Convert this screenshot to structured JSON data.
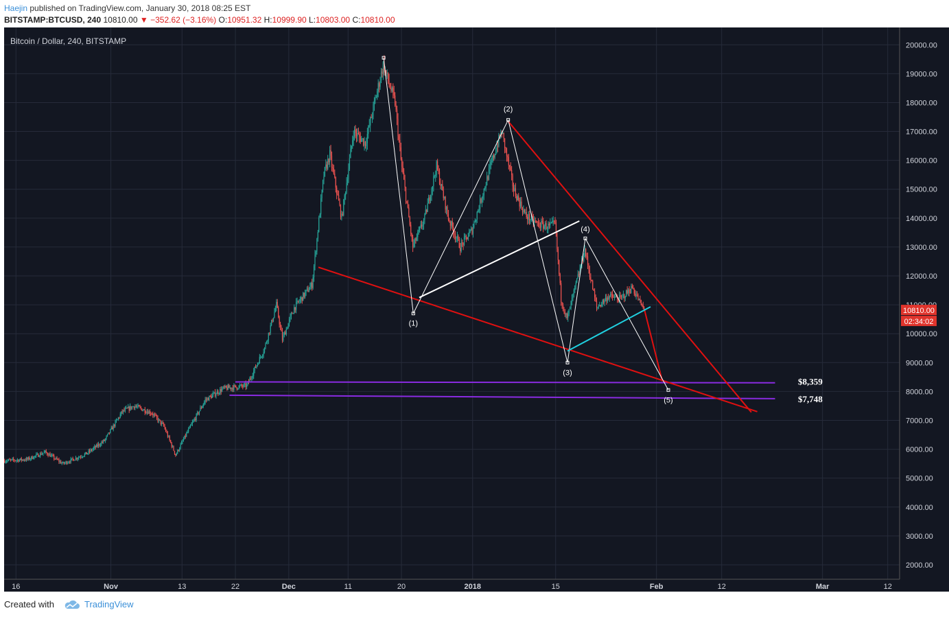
{
  "header": {
    "author": "Haejin",
    "published_text": "published on TradingView.com, January 30, 2018 08:25 EST",
    "symbol": "BITSTAMP:BTCUSD, 240",
    "last": "10810.00",
    "change": "−352.62 (−3.16%)",
    "o_label": "O:",
    "o_value": "10951.32",
    "h_label": "H:",
    "h_value": "10999.90",
    "l_label": "L:",
    "l_value": "10803.00",
    "c_label": "C:",
    "c_value": "10810.00"
  },
  "footer": {
    "created_with": "Created with",
    "brand": "TradingView"
  },
  "colors": {
    "background": "#131722",
    "grid": "#262b3a",
    "up": "#26a69a",
    "down": "#ef5350",
    "trend_red": "#e01010",
    "wave_white": "#ffffff",
    "support_purple": "#8a2be2",
    "cyan": "#20d0e0",
    "price_tag": "#e0342c"
  },
  "chart_data": {
    "type": "candlestick",
    "title": "Bitcoin / Dollar, 240, BITSTAMP",
    "ylim": [
      1500,
      20600
    ],
    "y_ticks": [
      20000,
      19000,
      18000,
      17000,
      16000,
      15000,
      14000,
      13000,
      12000,
      11000,
      10000,
      9000,
      8000,
      7000,
      6000,
      5000,
      4000,
      3000,
      2000
    ],
    "y_tick_labels": [
      "20000.00",
      "19000.00",
      "18000.00",
      "17000.00",
      "16000.00",
      "15000.00",
      "14000.00",
      "13000.00",
      "12000.00",
      "11000.00",
      "10000.00",
      "9000.00",
      "8000.00",
      "7000.00",
      "6000.00",
      "5000.00",
      "4000.00",
      "3000.00",
      "2000.00"
    ],
    "x_start": "2017-10-14",
    "x_end": "2018-03-14",
    "x_ticks": [
      {
        "date": "2017-10-16",
        "label": "16"
      },
      {
        "date": "2017-11-01",
        "label": "Nov"
      },
      {
        "date": "2017-11-13",
        "label": "13"
      },
      {
        "date": "2017-11-22",
        "label": "22"
      },
      {
        "date": "2017-12-01",
        "label": "Dec"
      },
      {
        "date": "2017-12-11",
        "label": "11"
      },
      {
        "date": "2017-12-20",
        "label": "20"
      },
      {
        "date": "2018-01-01",
        "label": "2018"
      },
      {
        "date": "2018-01-15",
        "label": "15"
      },
      {
        "date": "2018-02-01",
        "label": "Feb"
      },
      {
        "date": "2018-02-12",
        "label": "12"
      },
      {
        "date": "2018-03-01",
        "label": "Mar"
      },
      {
        "date": "2018-03-12",
        "label": "12"
      }
    ],
    "price_path": [
      {
        "date": "2017-10-14",
        "price": 5600
      },
      {
        "date": "2017-10-18",
        "price": 5650
      },
      {
        "date": "2017-10-21",
        "price": 5900
      },
      {
        "date": "2017-10-24",
        "price": 5500
      },
      {
        "date": "2017-10-28",
        "price": 5850
      },
      {
        "date": "2017-10-31",
        "price": 6300
      },
      {
        "date": "2017-11-03",
        "price": 7300
      },
      {
        "date": "2017-11-05",
        "price": 7500
      },
      {
        "date": "2017-11-08",
        "price": 7250
      },
      {
        "date": "2017-11-10",
        "price": 6800
      },
      {
        "date": "2017-11-12",
        "price": 5800
      },
      {
        "date": "2017-11-14",
        "price": 6600
      },
      {
        "date": "2017-11-17",
        "price": 7700
      },
      {
        "date": "2017-11-20",
        "price": 8100
      },
      {
        "date": "2017-11-24",
        "price": 8200
      },
      {
        "date": "2017-11-27",
        "price": 9500
      },
      {
        "date": "2017-11-29",
        "price": 11000
      },
      {
        "date": "2017-11-30",
        "price": 9800
      },
      {
        "date": "2017-12-02",
        "price": 10900
      },
      {
        "date": "2017-12-05",
        "price": 11700
      },
      {
        "date": "2017-12-07",
        "price": 15500
      },
      {
        "date": "2017-12-08",
        "price": 16200
      },
      {
        "date": "2017-12-10",
        "price": 14000
      },
      {
        "date": "2017-12-12",
        "price": 17000
      },
      {
        "date": "2017-12-14",
        "price": 16600
      },
      {
        "date": "2017-12-17",
        "price": 19300
      },
      {
        "date": "2017-12-19",
        "price": 18000
      },
      {
        "date": "2017-12-20",
        "price": 16000
      },
      {
        "date": "2017-12-22",
        "price": 13000
      },
      {
        "date": "2017-12-24",
        "price": 14000
      },
      {
        "date": "2017-12-26",
        "price": 15800
      },
      {
        "date": "2017-12-28",
        "price": 14000
      },
      {
        "date": "2017-12-30",
        "price": 13000
      },
      {
        "date": "2018-01-01",
        "price": 13600
      },
      {
        "date": "2018-01-03",
        "price": 15000
      },
      {
        "date": "2018-01-05",
        "price": 16400
      },
      {
        "date": "2018-01-06",
        "price": 17000
      },
      {
        "date": "2018-01-08",
        "price": 15000
      },
      {
        "date": "2018-01-10",
        "price": 14100
      },
      {
        "date": "2018-01-12",
        "price": 13800
      },
      {
        "date": "2018-01-14",
        "price": 13700
      },
      {
        "date": "2018-01-15",
        "price": 13800
      },
      {
        "date": "2018-01-16",
        "price": 11200
      },
      {
        "date": "2018-01-17",
        "price": 10500
      },
      {
        "date": "2018-01-18",
        "price": 11300
      },
      {
        "date": "2018-01-20",
        "price": 12900
      },
      {
        "date": "2018-01-22",
        "price": 10900
      },
      {
        "date": "2018-01-24",
        "price": 11300
      },
      {
        "date": "2018-01-26",
        "price": 11200
      },
      {
        "date": "2018-01-28",
        "price": 11600
      },
      {
        "date": "2018-01-30",
        "price": 10810
      }
    ],
    "drawings": {
      "wave_labels": [
        "(1)",
        "(2)",
        "(3)",
        "(4)",
        "(5)"
      ],
      "wave_points": [
        {
          "date": "2017-12-17",
          "price": 19550
        },
        {
          "date": "2017-12-22",
          "price": 10700
        },
        {
          "date": "2018-01-07",
          "price": 17400
        },
        {
          "date": "2018-01-17",
          "price": 9000
        },
        {
          "date": "2018-01-20",
          "price": 13300
        },
        {
          "date": "2018-02-03",
          "price": 8050
        }
      ],
      "price_labels": [
        {
          "text": "$8,359",
          "price": 8359
        },
        {
          "text": "$7,748",
          "price": 7748
        }
      ]
    },
    "last_price_tag": "10810.00",
    "countdown_tag": "02:34:02",
    "grid": true
  }
}
